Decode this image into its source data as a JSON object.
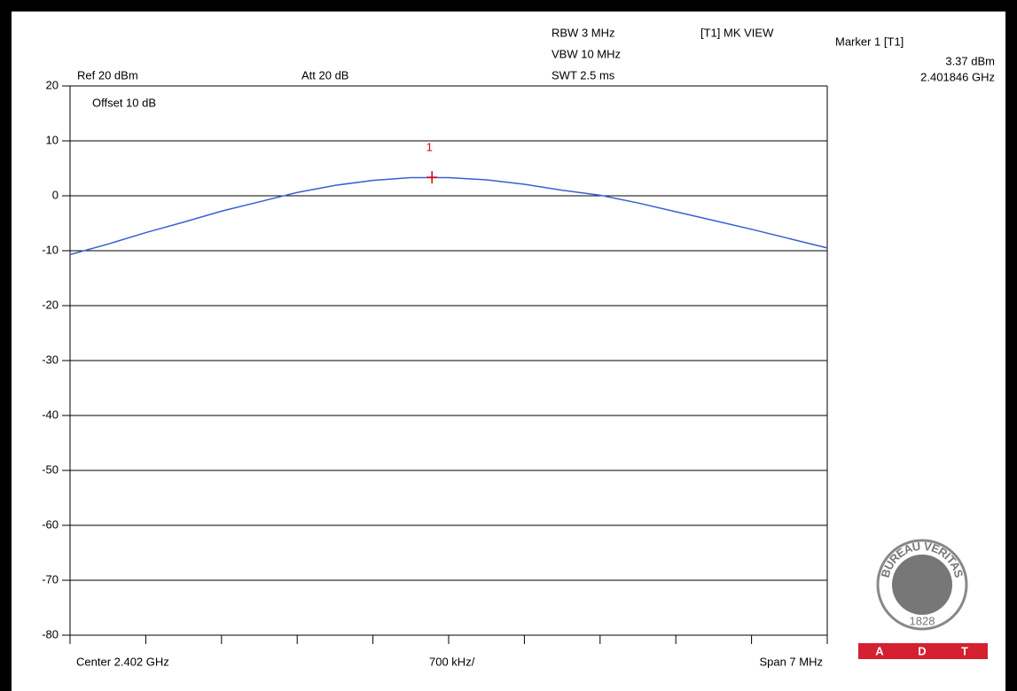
{
  "chart_data": {
    "type": "line",
    "header": {
      "ref": "Ref 20 dBm",
      "att": "Att  20 dB",
      "rbw": "RBW 3 MHz",
      "vbw": "VBW 10 MHz",
      "swt": "SWT 2.5 ms",
      "mode": "[T1] MK VIEW",
      "offset": "Offset 10 dB"
    },
    "footer": {
      "center": "Center 2.402 GHz",
      "div": "700 kHz/",
      "span": "Span 7 MHz"
    },
    "x": [
      2.3985,
      2.39885,
      2.3992,
      2.39955,
      2.3999,
      2.40025,
      2.4006,
      2.40095,
      2.4013,
      2.40165,
      2.402,
      2.40235,
      2.4027,
      2.40305,
      2.4034,
      2.40375,
      2.4041,
      2.40445,
      2.4048,
      2.40515,
      2.4055
    ],
    "series": [
      {
        "color": "#3a5fd0",
        "values": [
          -10.7,
          -8.8,
          -6.7,
          -4.8,
          -2.8,
          -1.1,
          0.6,
          1.9,
          2.8,
          3.3,
          3.3,
          2.9,
          2.1,
          1.0,
          0.1,
          -1.3,
          -2.9,
          -4.5,
          -6.1,
          -7.8,
          -9.5
        ]
      }
    ],
    "xlim": [
      2.3985,
      2.4055
    ],
    "xticks": [
      2.3985,
      2.3992,
      2.3999,
      2.4006,
      2.4013,
      2.402,
      2.4027,
      2.4034,
      2.4041,
      2.4048,
      2.4055
    ],
    "ylim": [
      -80,
      20
    ],
    "yticks": [
      20,
      10,
      0,
      -10,
      -20,
      -30,
      -40,
      -50,
      -60,
      -70,
      -80
    ],
    "grid": true,
    "marker": {
      "name": "Marker 1 [T1]",
      "label": "1",
      "x": 2.401846,
      "y": 3.37,
      "x_label": "2.401846 GHz",
      "y_label": "3.37 dBm",
      "color": "#e00000"
    },
    "logo": {
      "ring": "BUREAU VERITAS",
      "year": "1828",
      "letters": [
        "A",
        "D",
        "T"
      ]
    }
  }
}
